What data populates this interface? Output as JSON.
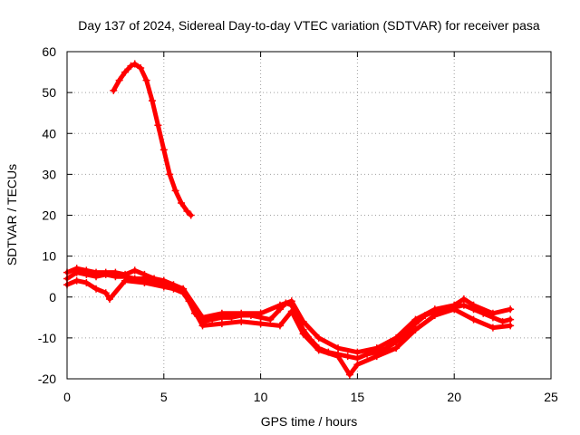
{
  "chart_data": {
    "type": "scatter",
    "title": "Day 137 of 2024, Sidereal Day-to-day VTEC variation (SDTVAR) for receiver pasa",
    "xlabel": "GPS time / hours",
    "ylabel": "SDTVAR / TECUs",
    "xlim": [
      0,
      25
    ],
    "ylim": [
      -20,
      60
    ],
    "xticks": [
      0,
      5,
      10,
      15,
      20,
      25
    ],
    "yticks": [
      -20,
      -10,
      0,
      10,
      20,
      30,
      40,
      50,
      60
    ],
    "xtick_labels": [
      "0",
      "5",
      "10",
      "15",
      "20",
      "25"
    ],
    "ytick_labels": [
      "-20",
      "-10",
      "0",
      "10",
      "20",
      "30",
      "40",
      "50",
      "60"
    ],
    "grid": true,
    "marker": "plus",
    "series_color": "#ff0000",
    "series": [
      {
        "name": "segment-1",
        "x": [
          2.4,
          2.7,
          3.0,
          3.3,
          3.5,
          3.8,
          4.1,
          4.4,
          4.7,
          5.0,
          5.3,
          5.6,
          5.9,
          6.2,
          6.4
        ],
        "y": [
          50.5,
          53,
          55,
          56.5,
          57,
          56,
          53,
          48,
          42,
          36,
          30,
          26,
          23,
          21,
          20
        ]
      },
      {
        "name": "segment-2",
        "x": [
          0.0,
          0.5,
          1.0,
          1.5,
          2.0,
          2.5,
          3.0,
          3.5,
          4.0,
          4.5,
          5.0,
          5.5,
          6.0,
          6.3,
          6.6,
          7.0,
          7.5,
          8.0,
          8.5,
          9.0,
          9.5,
          10.0,
          10.5,
          11.0,
          11.3,
          11.6,
          11.9,
          12.2,
          12.6,
          13.0,
          13.5,
          14.0,
          14.5,
          15.0,
          15.5,
          16.0,
          16.5,
          17.0,
          17.5,
          18.0,
          18.5,
          19.0,
          19.5,
          20.0,
          20.5,
          21.0,
          21.5,
          22.0,
          22.5,
          22.9
        ],
        "y": [
          4.5,
          6,
          5.5,
          5,
          5.5,
          5,
          5,
          4.5,
          4.5,
          3.5,
          3,
          2,
          1,
          -1,
          -4,
          -6,
          -5.5,
          -5,
          -5,
          -4.5,
          -4.5,
          -5,
          -5.5,
          -3,
          -1.5,
          -2,
          -5,
          -8,
          -10.5,
          -12.5,
          -13.5,
          -14,
          -14.5,
          -15,
          -14,
          -13.5,
          -12.5,
          -11,
          -9,
          -6.5,
          -4.5,
          -3.5,
          -3,
          -2.5,
          -2,
          -3,
          -4,
          -5,
          -6,
          -5.5
        ]
      },
      {
        "name": "segment-2-variant-high",
        "x": [
          0.0,
          0.5,
          1.0,
          1.5,
          2.0,
          2.5,
          3.0,
          3.5,
          4.0,
          4.5,
          5.0,
          5.5,
          6.0,
          7.0,
          8.0,
          9.0,
          10.0,
          11.0,
          11.6,
          12.2,
          13.0,
          14.0,
          15.0,
          16.0,
          17.0,
          18.0,
          19.0,
          20.0,
          20.5,
          21.0,
          22.0,
          22.9
        ],
        "y": [
          6,
          7,
          6.5,
          6,
          6,
          6,
          5.5,
          6.5,
          5.5,
          4.5,
          4,
          3,
          2,
          -5,
          -4,
          -4,
          -4,
          -2,
          -1,
          -6,
          -10,
          -12.5,
          -13.5,
          -12.5,
          -10,
          -5.5,
          -3,
          -2,
          -0.5,
          -2,
          -4,
          -3
        ]
      },
      {
        "name": "segment-2-variant-low",
        "x": [
          0.0,
          0.5,
          1.0,
          1.5,
          2.0,
          2.2,
          3.0,
          4.0,
          5.0,
          6.0,
          7.0,
          8.0,
          9.0,
          10.0,
          11.0,
          11.6,
          12.2,
          13.0,
          14.0,
          14.6,
          15.0,
          16.0,
          17.0,
          18.0,
          19.0,
          20.0,
          21.0,
          22.0,
          22.9
        ],
        "y": [
          3,
          4,
          3.5,
          2,
          1,
          -0.5,
          4,
          3.5,
          2.5,
          1.5,
          -7,
          -6.5,
          -6,
          -6.5,
          -7,
          -3.5,
          -9,
          -13,
          -14.5,
          -19,
          -16.5,
          -14.5,
          -12.5,
          -8,
          -4.5,
          -3,
          -5.5,
          -7.5,
          -7
        ]
      }
    ]
  }
}
